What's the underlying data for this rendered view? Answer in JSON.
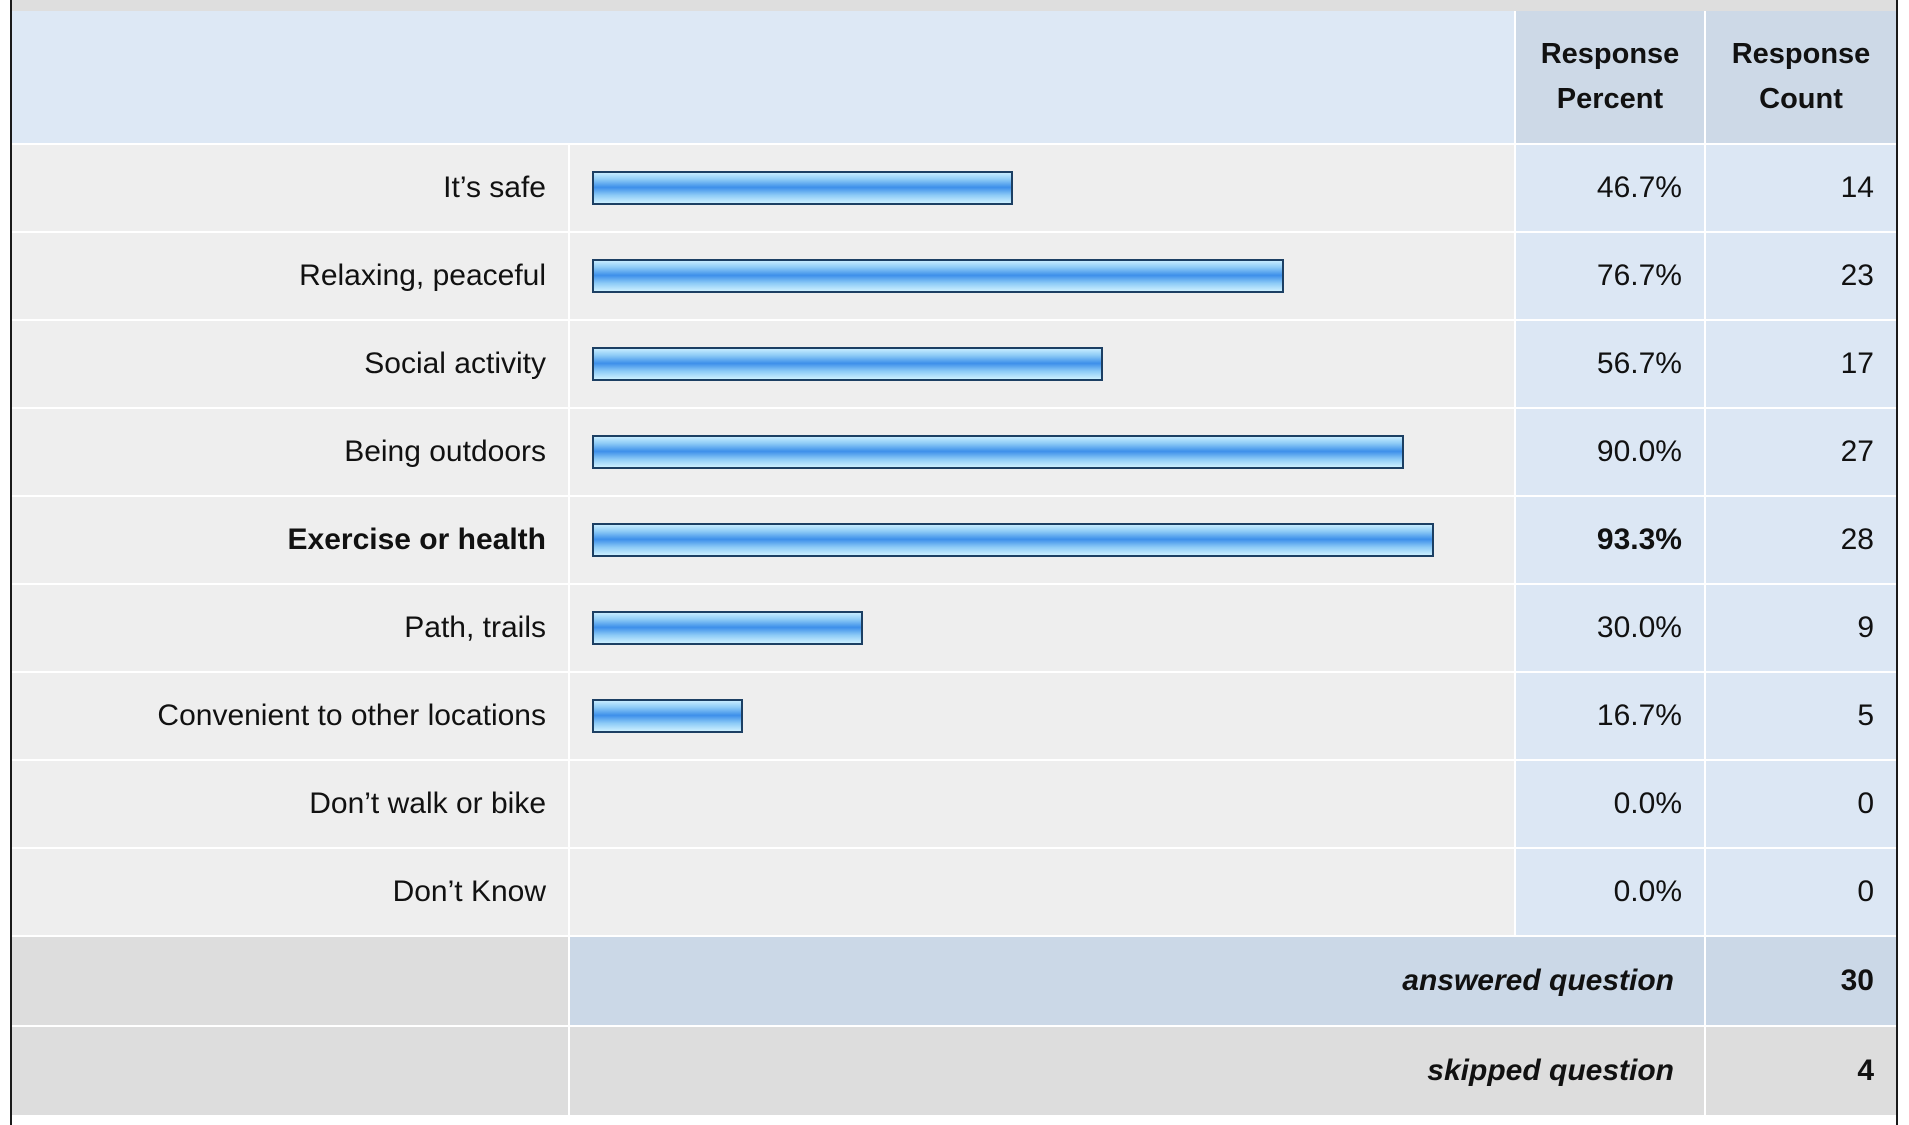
{
  "header": {
    "percent_label_line1": "Response",
    "percent_label_line2": "Percent",
    "count_label_line1": "Response",
    "count_label_line2": "Count"
  },
  "chart_data": {
    "type": "bar",
    "orientation": "horizontal",
    "categories": [
      "It’s safe",
      "Relaxing, peaceful",
      "Social activity",
      "Being outdoors",
      "Exercise or health",
      "Path, trails",
      "Convenient to other locations",
      "Don’t walk or bike",
      "Don’t Know"
    ],
    "values": [
      46.7,
      76.7,
      56.7,
      90.0,
      93.3,
      30.0,
      16.7,
      0.0,
      0.0
    ],
    "percent_labels": [
      "46.7%",
      "76.7%",
      "56.7%",
      "90.0%",
      "93.3%",
      "30.0%",
      "16.7%",
      "0.0%",
      "0.0%"
    ],
    "counts": [
      "14",
      "23",
      "17",
      "27",
      "28",
      "9",
      "5",
      "0",
      "0"
    ],
    "highlighted_index": 4,
    "xlim": [
      0,
      100
    ],
    "bar_colors": {
      "light": "#c6ecff",
      "mid": "#3d8fea",
      "border": "#1c3f63"
    }
  },
  "summary": {
    "answered_label": "answered question",
    "answered_value": "30",
    "skipped_label": "skipped question",
    "skipped_value": "4"
  }
}
